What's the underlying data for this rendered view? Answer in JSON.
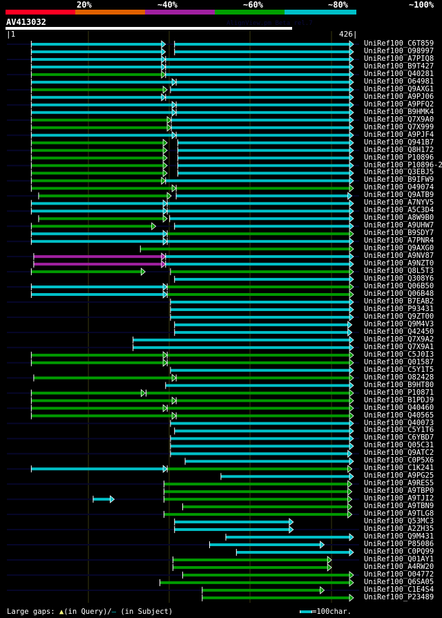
{
  "header": {
    "percent_labels": [
      "20%",
      "~40%",
      "~60%",
      "~80%",
      "~100%"
    ],
    "identity_colors": [
      "#ff0022",
      "#e06000",
      "#a020a0",
      "#00a000",
      "#00c0c8"
    ],
    "query_id": "AV413032",
    "tool_version": "AlignView.pm Beta rel.7",
    "ruler_start": "|1",
    "ruler_end": "426|"
  },
  "colors": {
    "c": "#00c0c8",
    "g": "#009a00",
    "m": "#a020a0",
    "stripe": "#06062a",
    "grid": "#3a3a10"
  },
  "query_length": 426,
  "hits": [
    {
      "id": "UniRef100_C6T859",
      "seg": [
        [
          30,
          195,
          "c"
        ],
        [
          206,
          426,
          "c"
        ]
      ]
    },
    {
      "id": "UniRef100_O98997",
      "seg": [
        [
          30,
          195,
          "c"
        ],
        [
          206,
          426,
          "c"
        ]
      ]
    },
    {
      "id": "UniRef100_A7PIQ8",
      "seg": [
        [
          30,
          195,
          "c"
        ],
        [
          195,
          426,
          "c"
        ]
      ]
    },
    {
      "id": "UniRef100_B9T427",
      "seg": [
        [
          30,
          195,
          "c"
        ],
        [
          195,
          426,
          "c"
        ]
      ]
    },
    {
      "id": "UniRef100_Q40281",
      "seg": [
        [
          30,
          195,
          "g"
        ],
        [
          195,
          426,
          "c"
        ]
      ]
    },
    {
      "id": "UniRef100_O64981",
      "seg": [
        [
          30,
          208,
          "c"
        ],
        [
          208,
          426,
          "c"
        ]
      ]
    },
    {
      "id": "UniRef100_Q9AXG1",
      "seg": [
        [
          30,
          197,
          "g"
        ],
        [
          201,
          426,
          "c"
        ]
      ]
    },
    {
      "id": "UniRef100_A9PJ06",
      "seg": [
        [
          30,
          195,
          "c"
        ],
        [
          195,
          426,
          "c"
        ]
      ]
    },
    {
      "id": "UniRef100_A9PFQ2",
      "seg": [
        [
          30,
          208,
          "c"
        ],
        [
          208,
          426,
          "c"
        ]
      ]
    },
    {
      "id": "UniRef100_B9HMK4",
      "seg": [
        [
          30,
          208,
          "c"
        ],
        [
          208,
          426,
          "c"
        ]
      ]
    },
    {
      "id": "UniRef100_Q7X9A0",
      "seg": [
        [
          30,
          202,
          "g"
        ],
        [
          202,
          426,
          "c"
        ]
      ]
    },
    {
      "id": "UniRef100_Q7X999",
      "seg": [
        [
          30,
          202,
          "g"
        ],
        [
          202,
          426,
          "c"
        ]
      ]
    },
    {
      "id": "UniRef100_A9PJF4",
      "seg": [
        [
          30,
          208,
          "c"
        ],
        [
          208,
          426,
          "c"
        ]
      ]
    },
    {
      "id": "UniRef100_Q941B7",
      "seg": [
        [
          30,
          197,
          "g"
        ],
        [
          210,
          426,
          "c"
        ]
      ]
    },
    {
      "id": "UniRef100_Q8H172",
      "seg": [
        [
          30,
          197,
          "g"
        ],
        [
          210,
          426,
          "c"
        ]
      ]
    },
    {
      "id": "UniRef100_P10896",
      "seg": [
        [
          30,
          197,
          "g"
        ],
        [
          210,
          426,
          "c"
        ]
      ]
    },
    {
      "id": "UniRef100_P10896-2",
      "seg": [
        [
          30,
          197,
          "g"
        ],
        [
          210,
          426,
          "c"
        ]
      ]
    },
    {
      "id": "UniRef100_Q3EBJ5",
      "seg": [
        [
          30,
          197,
          "g"
        ],
        [
          210,
          426,
          "c"
        ]
      ]
    },
    {
      "id": "UniRef100_B9IFW9",
      "seg": [
        [
          30,
          195,
          "g"
        ],
        [
          195,
          426,
          "c"
        ]
      ]
    },
    {
      "id": "UniRef100_O49074",
      "seg": [
        [
          30,
          208,
          "g"
        ],
        [
          208,
          426,
          "g"
        ]
      ]
    },
    {
      "id": "UniRef100_Q9ATB9",
      "seg": [
        [
          39,
          202,
          "g"
        ],
        [
          208,
          424,
          "c"
        ]
      ]
    },
    {
      "id": "UniRef100_A7NYV5",
      "seg": [
        [
          30,
          197,
          "c"
        ],
        [
          197,
          426,
          "c"
        ]
      ]
    },
    {
      "id": "UniRef100_A5C3D4",
      "seg": [
        [
          30,
          197,
          "c"
        ],
        [
          197,
          426,
          "c"
        ]
      ]
    },
    {
      "id": "UniRef100_A8W9B0",
      "seg": [
        [
          39,
          197,
          "g"
        ],
        [
          200,
          426,
          "c"
        ]
      ]
    },
    {
      "id": "UniRef100_A9UHW7",
      "seg": [
        [
          30,
          183,
          "g"
        ],
        [
          206,
          426,
          "c"
        ]
      ]
    },
    {
      "id": "UniRef100_B9SDY7",
      "seg": [
        [
          30,
          197,
          "c"
        ],
        [
          197,
          426,
          "g"
        ]
      ]
    },
    {
      "id": "UniRef100_A7PNR4",
      "seg": [
        [
          30,
          197,
          "c"
        ],
        [
          197,
          426,
          "c"
        ]
      ]
    },
    {
      "id": "UniRef100_Q9AXG0",
      "seg": [
        [
          164,
          426,
          "g"
        ]
      ]
    },
    {
      "id": "UniRef100_A9NV87",
      "seg": [
        [
          33,
          195,
          "m"
        ],
        [
          195,
          426,
          "c"
        ]
      ]
    },
    {
      "id": "UniRef100_A9NZT0",
      "seg": [
        [
          33,
          195,
          "m"
        ],
        [
          195,
          426,
          "c"
        ]
      ]
    },
    {
      "id": "UniRef100_Q8L5T3",
      "seg": [
        [
          30,
          170,
          "g"
        ],
        [
          201,
          426,
          "g"
        ]
      ]
    },
    {
      "id": "UniRef100_Q308Y6",
      "seg": [
        [
          206,
          426,
          "c"
        ]
      ]
    },
    {
      "id": "UniRef100_Q06B50",
      "seg": [
        [
          30,
          197,
          "c"
        ],
        [
          197,
          426,
          "g"
        ]
      ]
    },
    {
      "id": "UniRef100_Q06B48",
      "seg": [
        [
          30,
          197,
          "c"
        ],
        [
          197,
          426,
          "g"
        ]
      ]
    },
    {
      "id": "UniRef100_B7EAB2",
      "seg": [
        [
          201,
          426,
          "c"
        ]
      ]
    },
    {
      "id": "UniRef100_P93431",
      "seg": [
        [
          201,
          426,
          "c"
        ]
      ]
    },
    {
      "id": "UniRef100_Q9ZT00",
      "seg": [
        [
          201,
          426,
          "c"
        ]
      ]
    },
    {
      "id": "UniRef100_Q9M4V3",
      "seg": [
        [
          206,
          424,
          "c"
        ]
      ]
    },
    {
      "id": "UniRef100_Q42450",
      "seg": [
        [
          206,
          424,
          "c"
        ]
      ]
    },
    {
      "id": "UniRef100_Q7X9A2",
      "seg": [
        [
          155,
          426,
          "c"
        ]
      ]
    },
    {
      "id": "UniRef100_Q7X9A1",
      "seg": [
        [
          155,
          426,
          "c"
        ]
      ]
    },
    {
      "id": "UniRef100_C5J0I3",
      "seg": [
        [
          30,
          197,
          "g"
        ],
        [
          197,
          426,
          "g"
        ]
      ]
    },
    {
      "id": "UniRef100_Q01587",
      "seg": [
        [
          30,
          197,
          "g"
        ],
        [
          197,
          426,
          "g"
        ]
      ]
    },
    {
      "id": "UniRef100_C5Y1T5",
      "seg": [
        [
          201,
          426,
          "c"
        ]
      ]
    },
    {
      "id": "UniRef100_O82428",
      "seg": [
        [
          33,
          208,
          "g"
        ],
        [
          208,
          426,
          "g"
        ]
      ]
    },
    {
      "id": "UniRef100_B9HT80",
      "seg": [
        [
          195,
          426,
          "c"
        ]
      ]
    },
    {
      "id": "UniRef100_P10871",
      "seg": [
        [
          30,
          170,
          "g"
        ],
        [
          171,
          426,
          "g"
        ]
      ]
    },
    {
      "id": "UniRef100_B1PDJ9",
      "seg": [
        [
          30,
          208,
          "g"
        ],
        [
          208,
          426,
          "g"
        ]
      ]
    },
    {
      "id": "UniRef100_Q40460",
      "seg": [
        [
          30,
          197,
          "g"
        ],
        [
          197,
          426,
          "g"
        ]
      ]
    },
    {
      "id": "UniRef100_Q40565",
      "seg": [
        [
          30,
          208,
          "g"
        ],
        [
          208,
          426,
          "g"
        ]
      ]
    },
    {
      "id": "UniRef100_Q40073",
      "seg": [
        [
          201,
          426,
          "c"
        ]
      ]
    },
    {
      "id": "UniRef100_C5Y1T6",
      "seg": [
        [
          206,
          426,
          "c"
        ]
      ]
    },
    {
      "id": "UniRef100_C6YBD7",
      "seg": [
        [
          201,
          426,
          "c"
        ]
      ]
    },
    {
      "id": "UniRef100_Q05C31",
      "seg": [
        [
          201,
          426,
          "c"
        ]
      ]
    },
    {
      "id": "UniRef100_Q9ATC2",
      "seg": [
        [
          201,
          424,
          "c"
        ]
      ]
    },
    {
      "id": "UniRef100_C0P5X6",
      "seg": [
        [
          219,
          426,
          "c"
        ]
      ]
    },
    {
      "id": "UniRef100_C1K241",
      "seg": [
        [
          30,
          197,
          "c"
        ],
        [
          197,
          424,
          "g"
        ]
      ]
    },
    {
      "id": "UniRef100_A9PG25",
      "seg": [
        [
          263,
          426,
          "c"
        ]
      ]
    },
    {
      "id": "UniRef100_A9RES5",
      "seg": [
        [
          193,
          424,
          "g"
        ]
      ]
    },
    {
      "id": "UniRef100_A9TBP0",
      "seg": [
        [
          193,
          424,
          "g"
        ]
      ]
    },
    {
      "id": "UniRef100_A9TJI2",
      "seg": [
        [
          106,
          132,
          "c"
        ],
        [
          193,
          424,
          "g"
        ]
      ]
    },
    {
      "id": "UniRef100_A9TBN9",
      "seg": [
        [
          216,
          424,
          "g"
        ]
      ]
    },
    {
      "id": "UniRef100_A9TLG8",
      "seg": [
        [
          193,
          424,
          "g"
        ]
      ]
    },
    {
      "id": "UniRef100_Q53MC3",
      "seg": [
        [
          206,
          352,
          "c"
        ]
      ]
    },
    {
      "id": "UniRef100_A2ZH35",
      "seg": [
        [
          206,
          352,
          "c"
        ]
      ]
    },
    {
      "id": "UniRef100_Q9M431",
      "seg": [
        [
          269,
          426,
          "c"
        ]
      ]
    },
    {
      "id": "UniRef100_P85086",
      "seg": [
        [
          249,
          390,
          "c"
        ]
      ]
    },
    {
      "id": "UniRef100_C0PQ99",
      "seg": [
        [
          282,
          426,
          "c"
        ]
      ]
    },
    {
      "id": "UniRef100_Q01AY1",
      "seg": [
        [
          204,
          399,
          "g"
        ]
      ]
    },
    {
      "id": "UniRef100_A4RW20",
      "seg": [
        [
          204,
          399,
          "g"
        ]
      ]
    },
    {
      "id": "UniRef100_O04772",
      "seg": [
        [
          216,
          426,
          "g"
        ]
      ]
    },
    {
      "id": "UniRef100_Q6SA05",
      "seg": [
        [
          188,
          426,
          "g"
        ]
      ]
    },
    {
      "id": "UniRef100_C1E4S4",
      "seg": [
        [
          240,
          390,
          "g"
        ]
      ]
    },
    {
      "id": "UniRef100_P23489",
      "seg": [
        [
          240,
          426,
          "g"
        ]
      ]
    }
  ],
  "footer": {
    "large_gaps_label": "Large gaps:",
    "query_gap_marker": "▲",
    "in_query": "(in Query)/",
    "subject_gap_marker": "—",
    "in_subject": " (in Subject)",
    "scale_label": "=100char."
  }
}
